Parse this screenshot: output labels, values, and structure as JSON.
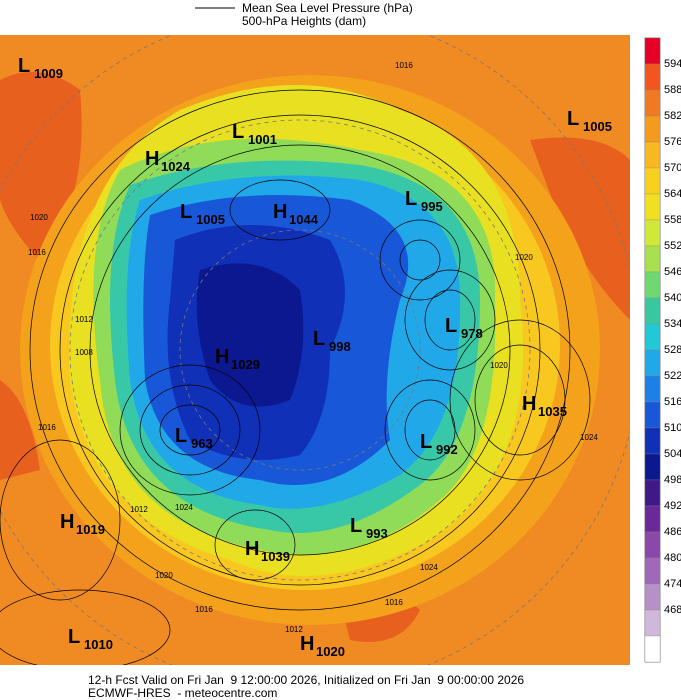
{
  "header": {
    "legend_lines": [
      "Mean Sea Level Pressure (hPa)",
      "500-hPa Heights (dam)"
    ]
  },
  "centers": [
    {
      "letter": "L",
      "value": "1009"
    },
    {
      "letter": "L",
      "value": "1001"
    },
    {
      "letter": "L",
      "value": "1005"
    },
    {
      "letter": "H",
      "value": "1024"
    },
    {
      "letter": "L",
      "value": "1005"
    },
    {
      "letter": "H",
      "value": "1044"
    },
    {
      "letter": "L",
      "value": "995"
    },
    {
      "letter": "L",
      "value": "978"
    },
    {
      "letter": "L",
      "value": "998"
    },
    {
      "letter": "H",
      "value": "1029"
    },
    {
      "letter": "H",
      "value": "1035"
    },
    {
      "letter": "L",
      "value": "963"
    },
    {
      "letter": "L",
      "value": "992"
    },
    {
      "letter": "H",
      "value": "1019"
    },
    {
      "letter": "L",
      "value": "993"
    },
    {
      "letter": "H",
      "value": "1039"
    },
    {
      "letter": "L",
      "value": "1010"
    },
    {
      "letter": "H",
      "value": "1020"
    }
  ],
  "contour_labels": [
    "1016",
    "1020",
    "1016",
    "1012",
    "1008",
    "1016",
    "1012",
    "1024",
    "1020",
    "1016",
    "1012",
    "1024",
    "1020",
    "1020",
    "1016",
    "1024"
  ],
  "colorbar": {
    "labels": [
      "594",
      "588",
      "582",
      "576",
      "570",
      "564",
      "558",
      "552",
      "546",
      "540",
      "534",
      "528",
      "522",
      "516",
      "510",
      "504",
      "498",
      "492",
      "486",
      "480",
      "474",
      "468"
    ],
    "colors": [
      "#e60026",
      "#f2561e",
      "#f07a22",
      "#f49a1c",
      "#f8b820",
      "#f8d020",
      "#f0e020",
      "#d0e838",
      "#a8e050",
      "#70d870",
      "#38c8a0",
      "#20c8d8",
      "#20a8e8",
      "#1c80e8",
      "#1858d8",
      "#1030b8",
      "#0c1890",
      "#401888",
      "#6a2898",
      "#8a48a8",
      "#a068b8",
      "#b890c8",
      "#d0b8dc",
      "#ffffff"
    ]
  },
  "footer": {
    "lines": [
      "12-h Fcst Valid on Fri Jan  9 12:00:00 2026, Initialized on Fri Jan  9 00:00:00 2026",
      "ECMWF-HRES  - meteocentre.com"
    ]
  }
}
